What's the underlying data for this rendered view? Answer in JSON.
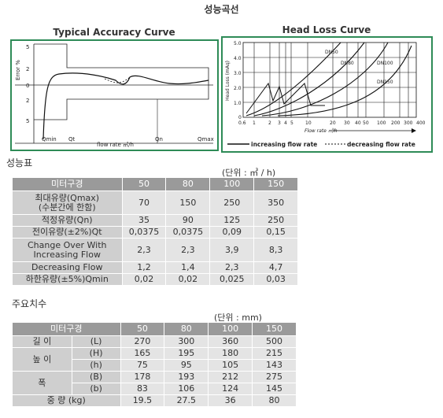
{
  "page_title": "성능곡선",
  "accuracy_curve": {
    "title": "Typical Accuracy Curve",
    "y_axis_label": "Error %",
    "y_ticks": [
      "5",
      "2",
      "0",
      "2",
      "5"
    ],
    "x_ticks": [
      "Qmin",
      "Qt",
      "Qn",
      "Qmax"
    ],
    "x_axis_label": "flow rate ㎥/h"
  },
  "head_loss_curve": {
    "title": "Head Loss Curve",
    "y_axis_label": "Head Loss (mAq)",
    "y_ticks": [
      "5.0",
      "4.0",
      "3.0",
      "2.0",
      "1.0",
      "0"
    ],
    "x_ticks": [
      "0.6",
      "1",
      "2",
      "3",
      "4",
      "5",
      "10",
      "20",
      "30",
      "40",
      "50",
      "100",
      "200",
      "300",
      "400"
    ],
    "x_axis_label": "Flow rate ㎥/h",
    "curve_labels": [
      "DN50",
      "DN80",
      "DN100",
      "DN150"
    ],
    "legend": {
      "increasing": "increasing flow rate",
      "decreasing": "decreasing flow rate"
    }
  },
  "performance_table": {
    "section_title": "성능표",
    "unit_note": "(단위 : ㎥ / h)",
    "header": [
      "미터구경",
      "50",
      "80",
      "100",
      "150"
    ],
    "rows": [
      {
        "label": "최대유량(Qmax)\n(수분간에 한함)",
        "values": [
          "70",
          "150",
          "250",
          "350"
        ]
      },
      {
        "label": "적정유량(Qn)",
        "values": [
          "35",
          "90",
          "125",
          "250"
        ]
      },
      {
        "label": "전이유량(±2%)Qt",
        "values": [
          "0,0375",
          "0,0375",
          "0,09",
          "0,15"
        ]
      },
      {
        "label": "Change Over With\nIncreasing Flow",
        "values": [
          "2,3",
          "2,3",
          "3,9",
          "8,3"
        ]
      },
      {
        "label": "Decreasing Flow",
        "values": [
          "1,2",
          "1,4",
          "2,3",
          "4,7"
        ]
      },
      {
        "label": "하한유량(±5%)Qmin",
        "values": [
          "0,02",
          "0,02",
          "0,025",
          "0,03"
        ]
      }
    ]
  },
  "dimensions_table": {
    "section_title": "주요치수",
    "unit_note": "(단위 : mm)",
    "header": [
      "미터구경",
      "50",
      "80",
      "100",
      "150"
    ],
    "rows": [
      {
        "label": "길 이",
        "sub": "(L)",
        "values": [
          "270",
          "300",
          "360",
          "500"
        ]
      },
      {
        "label": "높 이",
        "sub": "(H)",
        "values": [
          "165",
          "195",
          "180",
          "215"
        ]
      },
      {
        "label": "",
        "sub": "(h)",
        "values": [
          "75",
          "95",
          "105",
          "143"
        ]
      },
      {
        "label": "폭",
        "sub": "(B)",
        "values": [
          "178",
          "193",
          "212",
          "275"
        ]
      },
      {
        "label": "",
        "sub": "(b)",
        "values": [
          "83",
          "106",
          "124",
          "145"
        ]
      },
      {
        "label": "중 량 (kg)",
        "sub": "",
        "values": [
          "19.5",
          "27.5",
          "36",
          "80"
        ]
      }
    ]
  }
}
